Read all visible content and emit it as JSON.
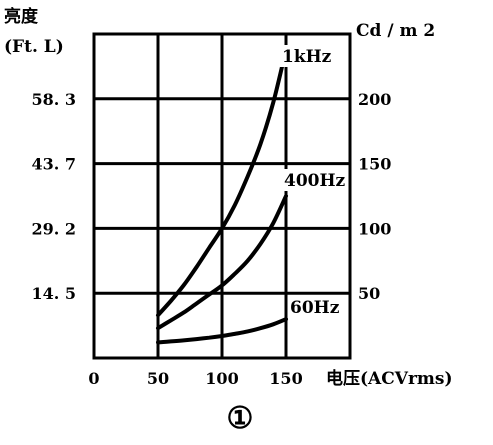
{
  "chart_data": {
    "type": "line",
    "title": "",
    "left_axis": {
      "label_line1": "亮度",
      "label_line2": "(Ft. L)",
      "ticks": [
        14.5,
        29.2,
        43.7,
        58.3
      ],
      "tick_labels": [
        "14. 5",
        "29. 2",
        "43. 7",
        "58. 3"
      ]
    },
    "right_axis": {
      "label": "Cd / m 2",
      "ticks": [
        50,
        100,
        150,
        200
      ],
      "range": [
        0,
        250
      ]
    },
    "x_axis": {
      "label": "电压(ACVrms)",
      "ticks": [
        0,
        50,
        100,
        150
      ],
      "range": [
        0,
        200
      ]
    },
    "grid": true,
    "series": [
      {
        "name": "1kHz",
        "x": [
          50,
          60,
          70,
          80,
          90,
          100,
          110,
          120,
          130,
          140,
          150
        ],
        "y": [
          33,
          44,
          56,
          70,
          85,
          100,
          118,
          140,
          165,
          197,
          238
        ]
      },
      {
        "name": "400Hz",
        "x": [
          50,
          60,
          70,
          80,
          90,
          100,
          110,
          120,
          130,
          140,
          150
        ],
        "y": [
          23,
          29,
          35,
          42,
          49,
          56,
          65,
          75,
          88,
          104,
          125
        ]
      },
      {
        "name": "60Hz",
        "x": [
          50,
          60,
          70,
          80,
          90,
          100,
          110,
          120,
          130,
          140,
          150
        ],
        "y": [
          12,
          12.8,
          13.6,
          14.6,
          15.7,
          17,
          18.6,
          20.5,
          23,
          26,
          30
        ]
      }
    ],
    "figure_label": "①"
  }
}
